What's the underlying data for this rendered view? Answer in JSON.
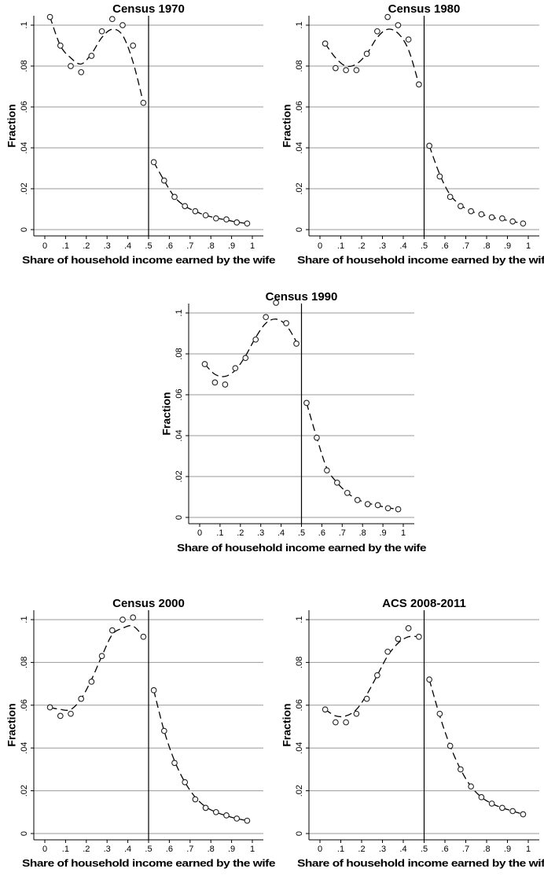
{
  "chart_data": [
    {
      "type": "scatter",
      "title": "Census 1970",
      "xlabel": "Share of household income earned by the wife",
      "ylabel": "Fraction",
      "xlim": [
        0,
        1
      ],
      "ylim": [
        0,
        0.1
      ],
      "x_ticks": [
        ".1",
        ".2",
        ".3",
        ".4",
        ".5",
        ".6",
        ".7",
        ".8",
        ".9",
        "1"
      ],
      "y_ticks": [
        "0",
        ".02",
        ".04",
        ".06",
        ".08",
        ".1"
      ],
      "grid": true,
      "threshold": 0.5,
      "x": [
        0.025,
        0.075,
        0.125,
        0.175,
        0.225,
        0.275,
        0.325,
        0.375,
        0.425,
        0.475,
        0.525,
        0.575,
        0.625,
        0.675,
        0.725,
        0.775,
        0.825,
        0.875,
        0.925,
        0.975
      ],
      "y": [
        0.104,
        0.09,
        0.08,
        0.077,
        0.085,
        0.097,
        0.103,
        0.1,
        0.09,
        0.062,
        0.033,
        0.024,
        0.016,
        0.0115,
        0.009,
        0.007,
        0.0055,
        0.005,
        0.0035,
        0.003
      ],
      "fit": [
        0.104,
        0.09,
        0.084,
        0.081,
        0.086,
        0.094,
        0.098,
        0.095,
        0.082,
        0.062,
        0.033,
        0.024,
        0.016,
        0.0115,
        0.009,
        0.007,
        0.0057,
        0.0047,
        0.0037,
        0.003
      ]
    },
    {
      "type": "scatter",
      "title": "Census 1980",
      "xlabel": "Share of household income earned by the wife",
      "ylabel": "Fraction",
      "xlim": [
        0,
        1
      ],
      "ylim": [
        0,
        0.1
      ],
      "x_ticks": [
        ".1",
        ".2",
        ".3",
        ".4",
        ".5",
        ".6",
        ".7",
        ".8",
        ".9",
        "1"
      ],
      "y_ticks": [
        "0",
        ".02",
        ".04",
        ".06",
        ".08",
        ".1"
      ],
      "grid": true,
      "threshold": 0.5,
      "x": [
        0.025,
        0.075,
        0.125,
        0.175,
        0.225,
        0.275,
        0.325,
        0.375,
        0.425,
        0.475,
        0.525,
        0.575,
        0.625,
        0.675,
        0.725,
        0.775,
        0.825,
        0.875,
        0.925,
        0.975
      ],
      "y": [
        0.091,
        0.079,
        0.078,
        0.078,
        0.086,
        0.097,
        0.104,
        0.1,
        0.093,
        0.071,
        0.041,
        0.026,
        0.016,
        0.0115,
        0.009,
        0.0075,
        0.006,
        0.0055,
        0.004,
        0.003
      ],
      "fit": [
        0.091,
        0.084,
        0.08,
        0.081,
        0.086,
        0.094,
        0.098,
        0.096,
        0.088,
        0.071,
        0.041,
        0.027,
        0.017,
        0.012,
        0.009,
        0.0075,
        0.006,
        0.005,
        0.004,
        0.003
      ]
    },
    {
      "type": "scatter",
      "title": "Census 1990",
      "xlabel": "Share of household income earned by the wife",
      "ylabel": "Fraction",
      "xlim": [
        0,
        1
      ],
      "ylim": [
        0,
        0.1
      ],
      "x_ticks": [
        ".1",
        ".2",
        ".3",
        ".4",
        ".5",
        ".6",
        ".7",
        ".8",
        ".9",
        "1"
      ],
      "y_ticks": [
        "0",
        ".02",
        ".04",
        ".06",
        ".08",
        ".1"
      ],
      "grid": true,
      "threshold": 0.5,
      "x": [
        0.025,
        0.075,
        0.125,
        0.175,
        0.225,
        0.275,
        0.325,
        0.375,
        0.425,
        0.475,
        0.525,
        0.575,
        0.625,
        0.675,
        0.725,
        0.775,
        0.825,
        0.875,
        0.925,
        0.975
      ],
      "y": [
        0.075,
        0.066,
        0.065,
        0.073,
        0.078,
        0.087,
        0.098,
        0.105,
        0.095,
        0.085,
        0.056,
        0.039,
        0.023,
        0.017,
        0.012,
        0.0085,
        0.0065,
        0.006,
        0.0045,
        0.004
      ],
      "fit": [
        0.075,
        0.07,
        0.069,
        0.072,
        0.079,
        0.088,
        0.095,
        0.097,
        0.094,
        0.086,
        0.056,
        0.039,
        0.024,
        0.017,
        0.012,
        0.0088,
        0.007,
        0.0058,
        0.0047,
        0.004
      ]
    },
    {
      "type": "scatter",
      "title": "Census 2000",
      "xlabel": "Share of household income earned by the wife",
      "ylabel": "Fraction",
      "xlim": [
        0,
        1
      ],
      "ylim": [
        0,
        0.1
      ],
      "x_ticks": [
        ".1",
        ".2",
        ".3",
        ".4",
        ".5",
        ".6",
        ".7",
        ".8",
        ".9",
        "1"
      ],
      "y_ticks": [
        "0",
        ".02",
        ".04",
        ".06",
        ".08",
        ".1"
      ],
      "grid": true,
      "threshold": 0.5,
      "x": [
        0.025,
        0.075,
        0.125,
        0.175,
        0.225,
        0.275,
        0.325,
        0.375,
        0.425,
        0.475,
        0.525,
        0.575,
        0.625,
        0.675,
        0.725,
        0.775,
        0.825,
        0.875,
        0.925,
        0.975
      ],
      "y": [
        0.059,
        0.055,
        0.056,
        0.063,
        0.071,
        0.083,
        0.095,
        0.1,
        0.101,
        0.092,
        0.067,
        0.048,
        0.033,
        0.024,
        0.016,
        0.012,
        0.01,
        0.0085,
        0.007,
        0.006
      ],
      "fit": [
        0.059,
        0.058,
        0.058,
        0.063,
        0.072,
        0.083,
        0.093,
        0.096,
        0.097,
        0.092,
        0.067,
        0.048,
        0.034,
        0.024,
        0.017,
        0.0125,
        0.01,
        0.0083,
        0.007,
        0.006
      ]
    },
    {
      "type": "scatter",
      "title": "ACS 2008-2011",
      "xlabel": "Share of household income earned by the wife",
      "ylabel": "Fraction",
      "xlim": [
        0,
        1
      ],
      "ylim": [
        0,
        0.1
      ],
      "x_ticks": [
        ".1",
        ".2",
        ".3",
        ".4",
        ".5",
        ".6",
        ".7",
        ".8",
        ".9",
        "1"
      ],
      "y_ticks": [
        "0",
        ".02",
        ".04",
        ".06",
        ".08",
        ".1"
      ],
      "grid": true,
      "threshold": 0.5,
      "x": [
        0.025,
        0.075,
        0.125,
        0.175,
        0.225,
        0.275,
        0.325,
        0.375,
        0.425,
        0.475,
        0.525,
        0.575,
        0.625,
        0.675,
        0.725,
        0.775,
        0.825,
        0.875,
        0.925,
        0.975
      ],
      "y": [
        0.058,
        0.052,
        0.052,
        0.056,
        0.063,
        0.074,
        0.085,
        0.091,
        0.096,
        0.092,
        0.072,
        0.056,
        0.041,
        0.03,
        0.022,
        0.017,
        0.014,
        0.012,
        0.0105,
        0.009
      ],
      "fit": [
        0.058,
        0.055,
        0.055,
        0.058,
        0.065,
        0.074,
        0.083,
        0.089,
        0.092,
        0.092,
        0.072,
        0.055,
        0.041,
        0.03,
        0.022,
        0.017,
        0.014,
        0.012,
        0.0105,
        0.009
      ]
    }
  ]
}
